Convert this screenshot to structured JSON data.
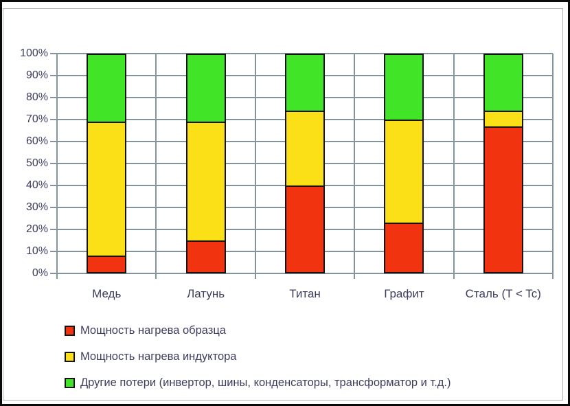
{
  "chart_data": {
    "type": "bar",
    "stacked": true,
    "title": "",
    "xlabel": "",
    "ylabel": "",
    "ylim": [
      0,
      100
    ],
    "grid": true,
    "legend_position": "bottom-left",
    "y_ticks": [
      "100%",
      "90%",
      "80%",
      "70%",
      "60%",
      "50%",
      "40%",
      "30%",
      "20%",
      "10%",
      "0%"
    ],
    "categories": [
      "Медь",
      "Латунь",
      "Титан",
      "Графит",
      "Сталь (T < Tc)"
    ],
    "series": [
      {
        "key": "sample-heating-power",
        "name": "Мощность нагрева образца",
        "color": "#F2330F",
        "values": [
          8,
          15,
          40,
          23,
          67
        ]
      },
      {
        "key": "inductor-heating-power",
        "name": "Мощность нагрева индуктора",
        "color": "#FBDF17",
        "values": [
          61,
          54,
          34,
          47,
          7
        ]
      },
      {
        "key": "other-losses",
        "name": "Другие потери (инвертор, шины, конденсаторы, трансформатор  и т.д.)",
        "color": "#41E426",
        "values": [
          31,
          31,
          26,
          30,
          26
        ]
      }
    ],
    "colors": {
      "gridline": "#83949D",
      "axis_text": "#3C3C5E",
      "bar_border": "#141414",
      "outer_border": "#0A0A0A",
      "chart_border": "#AAB3B8",
      "background": "#FFFFFF"
    }
  }
}
